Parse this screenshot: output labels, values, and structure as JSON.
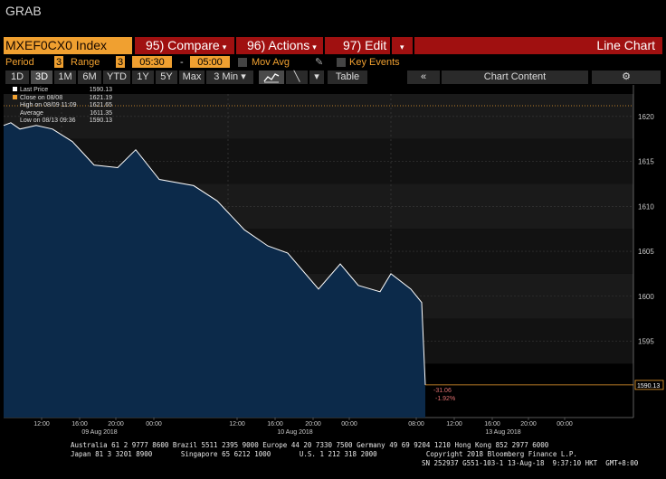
{
  "window": {
    "title": "GRAB"
  },
  "command_bar": {
    "ticker": "MXEF0CX0 Index",
    "compare": "95) Compare",
    "actions": "96) Actions",
    "edit": "97) Edit",
    "chart_type": "Line Chart"
  },
  "settings": {
    "period_label": "Period",
    "period_value": "3",
    "range_label": "Range",
    "range_value": "3",
    "time_from": "05:30",
    "time_dash": "-",
    "time_to": "05:00",
    "mov_avg": "Mov Avg",
    "key_events": "Key Events"
  },
  "toolbar": {
    "ranges": [
      "1D",
      "3D",
      "1M",
      "6M",
      "YTD",
      "1Y",
      "5Y",
      "Max"
    ],
    "selected_range": "3D",
    "interval": "3 Min",
    "table": "Table",
    "chart_content": "Chart Content"
  },
  "legend": {
    "items": [
      {
        "label": "Last Price",
        "value": "1590.13"
      },
      {
        "label": "Close on 08/08",
        "value": "1621.19"
      },
      {
        "label": "High on 08/09 11:09",
        "value": "1621.65"
      },
      {
        "label": "Average",
        "value": "1611.35"
      },
      {
        "label": "Low on 08/13 09:36",
        "value": "1590.13"
      }
    ]
  },
  "chart_data": {
    "type": "area",
    "x": [
      "09 Aug 12:00",
      "09 Aug 14:00",
      "09 Aug 16:00",
      "09 Aug 18:00",
      "09 Aug 20:00",
      "09 Aug 22:00",
      "10 Aug 00:00",
      "10 Aug 02:00",
      "10 Aug 04:00",
      "10 Aug 06:00",
      "10 Aug 08:00",
      "10 Aug 10:00",
      "10 Aug 12:00",
      "10 Aug 14:00",
      "10 Aug 16:00",
      "10 Aug 18:00",
      "10 Aug 20:00",
      "10 Aug 22:00",
      "13 Aug 00:00",
      "13 Aug 02:00",
      "13 Aug 04:00",
      "13 Aug 06:00",
      "13 Aug 08:00",
      "13 Aug 09:36"
    ],
    "series": [
      {
        "values": [
          1619.0,
          1619.3,
          1618.6,
          1619.0,
          1618.6,
          1617.2,
          1615.9,
          1614.6,
          1614.3,
          1616.3,
          1613.0,
          1612.3,
          1610.6,
          1607.4,
          1605.6,
          1604.8,
          1600.8,
          1603.6,
          1601.2,
          1600.5,
          1602.5,
          1600.8,
          1599.3,
          1590.13
        ]
      }
    ],
    "y_ticks": [
      "1620",
      "1615",
      "1610",
      "1605",
      "1600",
      "1595"
    ],
    "ylim": [
      1586.5,
      1622.5
    ],
    "last_price_label": "1590.13",
    "change": "-31.06",
    "change_pct": "-1.92%",
    "x_tick_labels": [
      "12:00",
      "16:00",
      "20:00",
      "00:00",
      "12:00",
      "16:00",
      "20:00",
      "00:00",
      "08:00",
      "12:00",
      "16:00",
      "20:00",
      "00:00"
    ],
    "date_labels": [
      "09 Aug 2018",
      "10 Aug 2018",
      "13 Aug 2018"
    ],
    "ref_line_value": 1621.19,
    "grid": true
  },
  "footer": {
    "line1": "Australia 61 2 9777 8600 Brazil 5511 2395 9000 Europe 44 20 7330 7500 Germany 49 69 9204 1210 Hong Kong 852 2977 6000",
    "line2": "Japan 81 3 3201 8900       Singapore 65 6212 1000       U.S. 1 212 318 2000            Copyright 2018 Bloomberg Finance L.P.",
    "line3": "SN 252937 G551-103-1 13-Aug-18  9:37:10 HKT  GMT+8:00"
  },
  "colors": {
    "orange": "#f0a030",
    "red": "#a01010",
    "area_fill": "#0c2a4a",
    "line": "#ffffff",
    "ref_line": "#f0a030"
  }
}
